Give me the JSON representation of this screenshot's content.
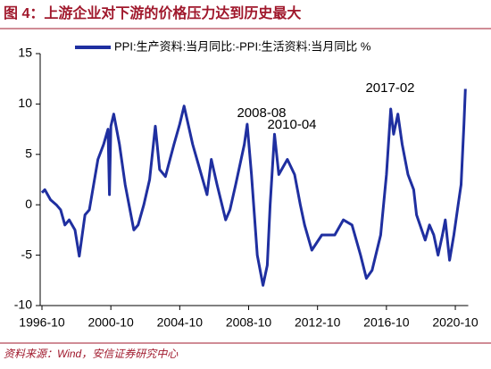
{
  "chart_data": {
    "type": "line",
    "title": "图 4：上游企业对下游的价格压力达到历史最大",
    "source": "资料来源：Wind，安信证券研究中心",
    "series": [
      {
        "name": "PPI:生产资料:当月同比:-PPI:生活资料:当月同比 %",
        "color": "#1f2fa0",
        "x": [
          "1996-10",
          "1996-12",
          "1997-04",
          "1997-08",
          "1997-11",
          "1998-02",
          "1998-05",
          "1998-09",
          "1998-12",
          "1999-04",
          "1999-07",
          "2000-01",
          "2000-05",
          "2000-08",
          "2000-09",
          "2000-10",
          "2000-12",
          "2001-04",
          "2001-08",
          "2002-02",
          "2002-05",
          "2002-09",
          "2003-01",
          "2003-05",
          "2003-08",
          "2003-12",
          "2004-06",
          "2004-10",
          "2005-01",
          "2005-07",
          "2006-01",
          "2006-05",
          "2006-08",
          "2006-12",
          "2007-06",
          "2007-09",
          "2008-01",
          "2008-07",
          "2008-09",
          "2008-12",
          "2009-04",
          "2009-08",
          "2009-11",
          "2010-01",
          "2010-04",
          "2010-07",
          "2011-01",
          "2011-06",
          "2011-10",
          "2012-01",
          "2012-06",
          "2013-01",
          "2013-10",
          "2014-04",
          "2014-10",
          "2015-04",
          "2015-08",
          "2015-12",
          "2016-06",
          "2016-10",
          "2017-01",
          "2017-03",
          "2017-06",
          "2017-09",
          "2018-01",
          "2018-05",
          "2018-07",
          "2019-01",
          "2019-04",
          "2019-07",
          "2019-10",
          "2020-01",
          "2020-03",
          "2020-06",
          "2020-09",
          "2020-12",
          "2021-02",
          "2021-04",
          "2021-05"
        ],
        "values": [
          1.2,
          1.5,
          0.5,
          0.0,
          -0.5,
          -2.0,
          -1.5,
          -2.5,
          -5.1,
          -1.0,
          -0.5,
          4.5,
          6.0,
          7.5,
          1.0,
          7.8,
          9.0,
          6.0,
          2.0,
          -2.5,
          -2.0,
          0.0,
          2.5,
          7.8,
          3.5,
          2.8,
          6.0,
          8.0,
          9.8,
          6.0,
          3.0,
          1.0,
          4.5,
          2.0,
          -1.5,
          -0.5,
          2.0,
          6.0,
          8.0,
          3.0,
          -5.0,
          -8.0,
          -6.0,
          0.0,
          7.0,
          3.0,
          4.5,
          3.0,
          0.0,
          -2.0,
          -4.5,
          -3.0,
          -3.0,
          -1.5,
          -2.0,
          -5.0,
          -7.3,
          -6.5,
          -3.0,
          3.0,
          9.5,
          7.0,
          9.0,
          6.0,
          3.0,
          1.5,
          -1.0,
          -3.5,
          -2.0,
          -3.0,
          -5.0,
          -3.0,
          -1.5,
          -5.5,
          -3.0,
          0.0,
          2.0,
          8.0,
          11.5
        ]
      }
    ],
    "annotations": [
      "2008-08",
      "2010-04",
      "2017-02"
    ],
    "xlim": [
      "1996-10",
      "2021-07"
    ],
    "xticks": [
      "1996-10",
      "2000-10",
      "2004-10",
      "2008-10",
      "2012-10",
      "2016-10",
      "2020-10"
    ],
    "ylim": [
      -10,
      15
    ],
    "yticks": [
      -10,
      -5,
      0,
      5,
      10,
      15
    ]
  }
}
